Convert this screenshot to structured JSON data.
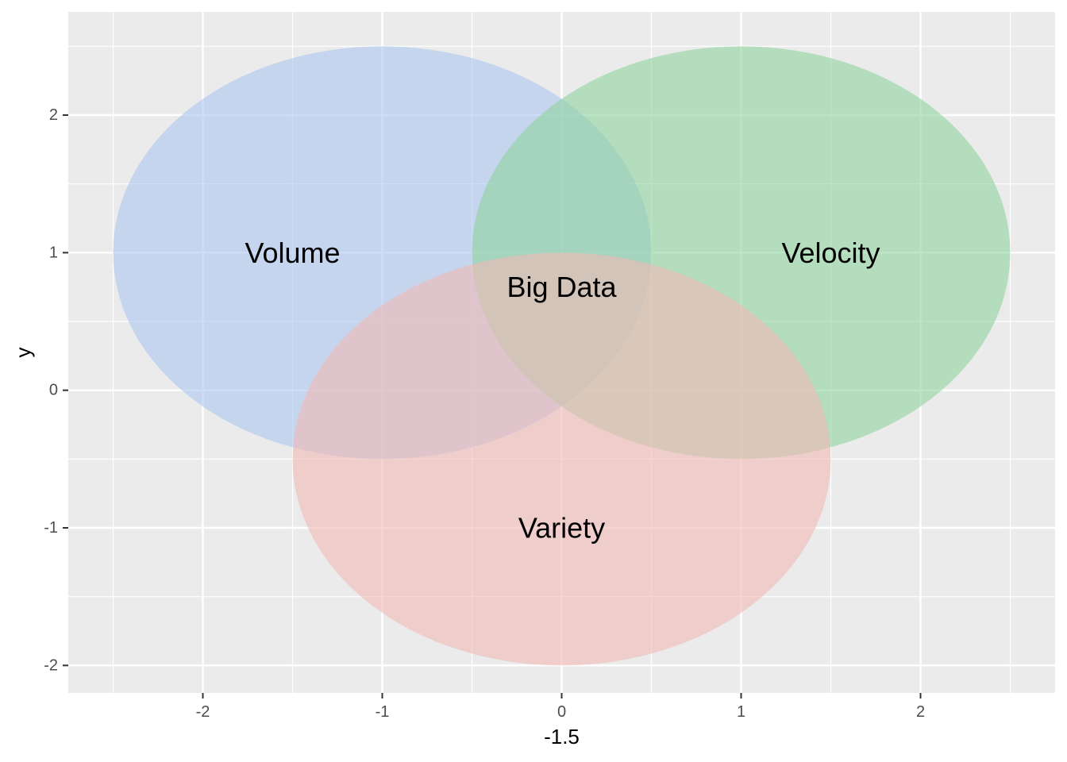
{
  "chart_data": {
    "type": "venn",
    "xlabel": "-1.5",
    "ylabel": "y",
    "xlim": [
      -2.75,
      2.75
    ],
    "ylim": [
      -2.2,
      2.75
    ],
    "x_ticks": [
      -2,
      -1,
      0,
      1,
      2
    ],
    "y_ticks": [
      -2,
      -1,
      0,
      1,
      2
    ],
    "grid": true,
    "background": "#ebebeb",
    "circles": [
      {
        "name": "Volume",
        "label": "Volume",
        "cx": -1,
        "cy": 1,
        "r": 1.5,
        "color": "#aec7f0",
        "label_x": -1.5,
        "label_y": 1
      },
      {
        "name": "Velocity",
        "label": "Velocity",
        "cx": 1,
        "cy": 1,
        "r": 1.5,
        "color": "#8fd49f",
        "label_x": 1.5,
        "label_y": 1
      },
      {
        "name": "Variety",
        "label": "Variety",
        "cx": 0,
        "cy": -0.5,
        "r": 1.5,
        "color": "#f2b9b6",
        "label_x": 0,
        "label_y": -1
      }
    ],
    "center_label": {
      "text": "Big Data",
      "x": 0,
      "y": 0.75
    },
    "fill_opacity": 0.6
  }
}
